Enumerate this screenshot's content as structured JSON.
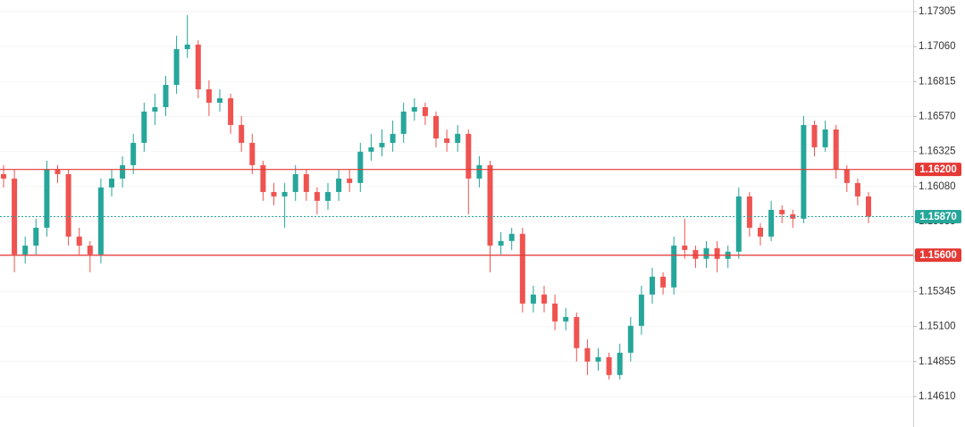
{
  "chart_data": {
    "type": "candlestick",
    "up_color": "#26a69a",
    "down_color": "#ef5350",
    "grid": true,
    "ylim": [
      1.14397,
      1.17386
    ],
    "yticks": [
      {
        "value": 1.17305,
        "label": "1.17305"
      },
      {
        "value": 1.1706,
        "label": "1.17060"
      },
      {
        "value": 1.16815,
        "label": "1.16815"
      },
      {
        "value": 1.1657,
        "label": "1.16570"
      },
      {
        "value": 1.16325,
        "label": "1.16325"
      },
      {
        "value": 1.1608,
        "label": "1.16080"
      },
      {
        "value": 1.15835,
        "label": "1.15835"
      },
      {
        "value": 1.1559,
        "label": "1.15590"
      },
      {
        "value": 1.15345,
        "label": "1.15345"
      },
      {
        "value": 1.151,
        "label": "1.15100"
      },
      {
        "value": 1.14855,
        "label": "1.14855"
      },
      {
        "value": 1.1461,
        "label": "1.14610"
      }
    ],
    "levels": [
      {
        "value": 1.162,
        "label": "1.16200",
        "color": "#e53935"
      },
      {
        "value": 1.156,
        "label": "1.15600",
        "color": "#e53935"
      }
    ],
    "last_price": {
      "value": 1.1587,
      "label": "1.15870",
      "color": "#26a69a"
    },
    "candles": [
      [
        1.16167,
        1.1623,
        1.16074,
        1.16136
      ],
      [
        1.16136,
        1.16198,
        1.1548,
        1.15605
      ],
      [
        1.15605,
        1.1573,
        1.15542,
        1.15667
      ],
      [
        1.15667,
        1.15855,
        1.15605,
        1.15792
      ],
      [
        1.15792,
        1.16261,
        1.1573,
        1.16198
      ],
      [
        1.16198,
        1.1623,
        1.16105,
        1.16167
      ],
      [
        1.16167,
        1.16198,
        1.15667,
        1.1573
      ],
      [
        1.1573,
        1.15792,
        1.15605,
        1.15667
      ],
      [
        1.15667,
        1.15698,
        1.1548,
        1.15605
      ],
      [
        1.15605,
        1.16136,
        1.15542,
        1.16074
      ],
      [
        1.16074,
        1.16198,
        1.16011,
        1.16136
      ],
      [
        1.16136,
        1.16292,
        1.16074,
        1.1623
      ],
      [
        1.1623,
        1.16449,
        1.16167,
        1.16386
      ],
      [
        1.16386,
        1.16667,
        1.16324,
        1.16605
      ],
      [
        1.16605,
        1.1673,
        1.16511,
        1.16636
      ],
      [
        1.16636,
        1.16855,
        1.16574,
        1.16792
      ],
      [
        1.16792,
        1.17136,
        1.1673,
        1.17042
      ],
      [
        1.17042,
        1.1728,
        1.1698,
        1.17074
      ],
      [
        1.17074,
        1.17105,
        1.16698,
        1.16761
      ],
      [
        1.16761,
        1.16824,
        1.16574,
        1.16667
      ],
      [
        1.16667,
        1.16761,
        1.16605,
        1.16698
      ],
      [
        1.16698,
        1.1673,
        1.16449,
        1.16511
      ],
      [
        1.16511,
        1.16574,
        1.16324,
        1.16386
      ],
      [
        1.16386,
        1.16449,
        1.16167,
        1.1623
      ],
      [
        1.1623,
        1.16261,
        1.1598,
        1.16042
      ],
      [
        1.16042,
        1.16105,
        1.15949,
        1.16011
      ],
      [
        1.16011,
        1.16105,
        1.15792,
        1.16042
      ],
      [
        1.16042,
        1.1623,
        1.1598,
        1.16167
      ],
      [
        1.16167,
        1.16198,
        1.1598,
        1.16042
      ],
      [
        1.16042,
        1.16074,
        1.15886,
        1.1598
      ],
      [
        1.1598,
        1.16105,
        1.15917,
        1.16042
      ],
      [
        1.16042,
        1.16198,
        1.1598,
        1.16136
      ],
      [
        1.16136,
        1.16198,
        1.16042,
        1.16105
      ],
      [
        1.16105,
        1.16386,
        1.16042,
        1.16324
      ],
      [
        1.16324,
        1.16449,
        1.16261,
        1.16355
      ],
      [
        1.16355,
        1.1648,
        1.16292,
        1.16386
      ],
      [
        1.16386,
        1.16542,
        1.16324,
        1.16449
      ],
      [
        1.16449,
        1.16667,
        1.16386,
        1.16605
      ],
      [
        1.16605,
        1.16698,
        1.16542,
        1.16636
      ],
      [
        1.16636,
        1.16667,
        1.16511,
        1.16574
      ],
      [
        1.16574,
        1.16605,
        1.16355,
        1.16417
      ],
      [
        1.16417,
        1.1648,
        1.16324,
        1.16386
      ],
      [
        1.16386,
        1.16511,
        1.16324,
        1.16449
      ],
      [
        1.16449,
        1.1648,
        1.15886,
        1.16136
      ],
      [
        1.16136,
        1.16292,
        1.16074,
        1.1623
      ],
      [
        1.1623,
        1.16261,
        1.1548,
        1.15667
      ],
      [
        1.15667,
        1.15761,
        1.15605,
        1.15699
      ],
      [
        1.15699,
        1.15792,
        1.15636,
        1.15749
      ],
      [
        1.15749,
        1.15792,
        1.15199,
        1.15261
      ],
      [
        1.15261,
        1.15386,
        1.15199,
        1.15324
      ],
      [
        1.15324,
        1.15386,
        1.15199,
        1.15261
      ],
      [
        1.15261,
        1.15324,
        1.15074,
        1.15136
      ],
      [
        1.15136,
        1.1523,
        1.15074,
        1.15167
      ],
      [
        1.15167,
        1.15199,
        1.14855,
        1.14949
      ],
      [
        1.14949,
        1.15011,
        1.14761,
        1.14855
      ],
      [
        1.14855,
        1.14949,
        1.14792,
        1.14886
      ],
      [
        1.14886,
        1.14917,
        1.1473,
        1.14761
      ],
      [
        1.14761,
        1.1498,
        1.1473,
        1.14917
      ],
      [
        1.14917,
        1.15167,
        1.14855,
        1.15105
      ],
      [
        1.15105,
        1.15386,
        1.15042,
        1.15324
      ],
      [
        1.15324,
        1.15511,
        1.15261,
        1.15449
      ],
      [
        1.15449,
        1.1548,
        1.15324,
        1.15374
      ],
      [
        1.15374,
        1.1573,
        1.15324,
        1.15667
      ],
      [
        1.15667,
        1.15855,
        1.15574,
        1.15636
      ],
      [
        1.15636,
        1.15667,
        1.15511,
        1.15574
      ],
      [
        1.15574,
        1.15698,
        1.15511,
        1.15649
      ],
      [
        1.15649,
        1.15698,
        1.1548,
        1.15574
      ],
      [
        1.15574,
        1.15667,
        1.15511,
        1.15624
      ],
      [
        1.15624,
        1.16074,
        1.15574,
        1.16011
      ],
      [
        1.16011,
        1.16042,
        1.1573,
        1.15792
      ],
      [
        1.15792,
        1.15824,
        1.15667,
        1.1573
      ],
      [
        1.1573,
        1.1598,
        1.15698,
        1.15917
      ],
      [
        1.15917,
        1.15949,
        1.15824,
        1.15886
      ],
      [
        1.15886,
        1.15917,
        1.15792,
        1.15855
      ],
      [
        1.15855,
        1.16574,
        1.15824,
        1.16511
      ],
      [
        1.16511,
        1.16542,
        1.16292,
        1.16355
      ],
      [
        1.16355,
        1.16542,
        1.16324,
        1.1648
      ],
      [
        1.1648,
        1.16511,
        1.16136,
        1.16198
      ],
      [
        1.16198,
        1.1623,
        1.16042,
        1.16105
      ],
      [
        1.16105,
        1.16136,
        1.15949,
        1.16011
      ],
      [
        1.16011,
        1.16042,
        1.15824,
        1.1587
      ]
    ]
  }
}
